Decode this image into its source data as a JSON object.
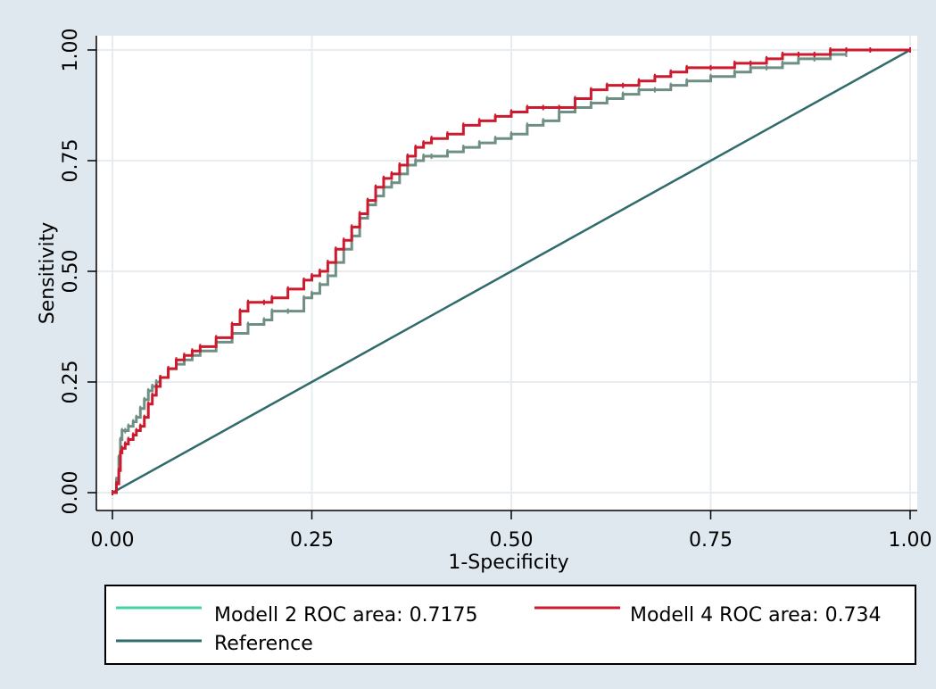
{
  "chart_data": {
    "type": "line",
    "xlabel": "1-Specificity",
    "ylabel": "Sensitivity",
    "xlim": [
      0,
      1
    ],
    "ylim": [
      0,
      1
    ],
    "x_ticks": [
      "0.00",
      "0.25",
      "0.50",
      "0.75",
      "1.00"
    ],
    "y_ticks": [
      "0.00",
      "0.25",
      "0.50",
      "0.75",
      "1.00"
    ],
    "grid": true,
    "legend": "bottom",
    "series": [
      {
        "name": "Modell 2 ROC area: 0.7175",
        "color": "#3fd6a4",
        "step_color": "#6f8f84",
        "x": [
          0.0,
          0.005,
          0.008,
          0.01,
          0.012,
          0.016,
          0.02,
          0.026,
          0.03,
          0.035,
          0.04,
          0.045,
          0.05,
          0.055,
          0.06,
          0.07,
          0.08,
          0.09,
          0.1,
          0.11,
          0.13,
          0.15,
          0.17,
          0.19,
          0.2,
          0.22,
          0.24,
          0.25,
          0.26,
          0.27,
          0.28,
          0.29,
          0.3,
          0.31,
          0.32,
          0.33,
          0.34,
          0.35,
          0.36,
          0.37,
          0.38,
          0.39,
          0.4,
          0.42,
          0.44,
          0.46,
          0.48,
          0.5,
          0.52,
          0.54,
          0.56,
          0.58,
          0.6,
          0.62,
          0.64,
          0.66,
          0.68,
          0.7,
          0.72,
          0.75,
          0.78,
          0.8,
          0.82,
          0.84,
          0.86,
          0.88,
          0.9,
          0.92
        ],
        "y": [
          0.0,
          0.03,
          0.08,
          0.12,
          0.14,
          0.14,
          0.15,
          0.16,
          0.17,
          0.19,
          0.21,
          0.23,
          0.24,
          0.25,
          0.26,
          0.28,
          0.29,
          0.3,
          0.31,
          0.32,
          0.34,
          0.36,
          0.38,
          0.39,
          0.41,
          0.41,
          0.44,
          0.45,
          0.47,
          0.49,
          0.52,
          0.55,
          0.58,
          0.62,
          0.65,
          0.67,
          0.69,
          0.7,
          0.72,
          0.74,
          0.75,
          0.76,
          0.76,
          0.77,
          0.78,
          0.79,
          0.8,
          0.81,
          0.83,
          0.84,
          0.86,
          0.87,
          0.88,
          0.89,
          0.9,
          0.91,
          0.91,
          0.92,
          0.93,
          0.94,
          0.95,
          0.96,
          0.96,
          0.97,
          0.98,
          0.98,
          0.99,
          0.99
        ]
      },
      {
        "name": "Modell 4 ROC area: 0.734",
        "color": "#cc1a2e",
        "x": [
          0.0,
          0.005,
          0.008,
          0.01,
          0.012,
          0.016,
          0.02,
          0.026,
          0.03,
          0.035,
          0.04,
          0.045,
          0.05,
          0.055,
          0.06,
          0.07,
          0.08,
          0.09,
          0.1,
          0.11,
          0.13,
          0.15,
          0.16,
          0.17,
          0.19,
          0.2,
          0.22,
          0.24,
          0.25,
          0.26,
          0.27,
          0.28,
          0.29,
          0.3,
          0.31,
          0.32,
          0.33,
          0.34,
          0.35,
          0.36,
          0.37,
          0.38,
          0.39,
          0.4,
          0.42,
          0.44,
          0.46,
          0.48,
          0.5,
          0.52,
          0.54,
          0.56,
          0.58,
          0.6,
          0.62,
          0.64,
          0.66,
          0.68,
          0.7,
          0.72,
          0.75,
          0.78,
          0.8,
          0.82,
          0.84,
          0.86,
          0.88,
          0.9,
          0.92,
          0.95,
          1.0
        ],
        "y": [
          0.0,
          0.02,
          0.05,
          0.09,
          0.1,
          0.11,
          0.12,
          0.13,
          0.14,
          0.15,
          0.17,
          0.2,
          0.22,
          0.24,
          0.26,
          0.28,
          0.3,
          0.31,
          0.32,
          0.33,
          0.35,
          0.38,
          0.41,
          0.43,
          0.43,
          0.44,
          0.46,
          0.48,
          0.49,
          0.5,
          0.52,
          0.55,
          0.57,
          0.6,
          0.63,
          0.66,
          0.69,
          0.71,
          0.72,
          0.74,
          0.76,
          0.78,
          0.79,
          0.8,
          0.81,
          0.83,
          0.84,
          0.85,
          0.86,
          0.87,
          0.87,
          0.87,
          0.89,
          0.91,
          0.92,
          0.92,
          0.93,
          0.94,
          0.95,
          0.96,
          0.96,
          0.97,
          0.97,
          0.98,
          0.99,
          0.99,
          0.99,
          1.0,
          1.0,
          1.0,
          1.0
        ]
      },
      {
        "name": "Reference",
        "color": "#2f6b6a",
        "x": [
          0,
          1
        ],
        "y": [
          0,
          1
        ]
      }
    ]
  },
  "colors": {
    "background": "#dfe8ee",
    "plot_background": "#ffffff",
    "grid": "#e6ecef"
  }
}
